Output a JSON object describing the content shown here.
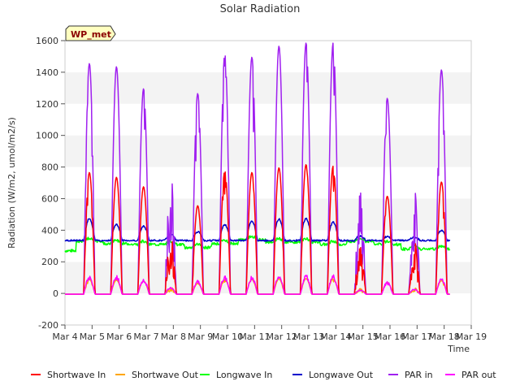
{
  "chart_data": {
    "type": "line",
    "title": "Solar Radiation",
    "xlabel": "Time",
    "ylabel": "Radiation (W/m2, umol/m2/s)",
    "site_badge": "WP_met",
    "ylim": [
      -200,
      1600
    ],
    "xlim": [
      0,
      15
    ],
    "yticks": [
      -200,
      0,
      200,
      400,
      600,
      800,
      1000,
      1200,
      1400,
      1600
    ],
    "xticks": [
      {
        "v": 0,
        "label": "Mar 4"
      },
      {
        "v": 1,
        "label": "Mar 5"
      },
      {
        "v": 2,
        "label": "Mar 6"
      },
      {
        "v": 3,
        "label": "Mar 7"
      },
      {
        "v": 4,
        "label": "Mar 8"
      },
      {
        "v": 5,
        "label": "Mar 9"
      },
      {
        "v": 6,
        "label": "Mar 10"
      },
      {
        "v": 7,
        "label": "Mar 11"
      },
      {
        "v": 8,
        "label": "Mar 12"
      },
      {
        "v": 9,
        "label": "Mar 13"
      },
      {
        "v": 10,
        "label": "Mar 14"
      },
      {
        "v": 11,
        "label": "Mar 15"
      },
      {
        "v": 12,
        "label": "Mar 16"
      },
      {
        "v": 13,
        "label": "Mar 17"
      },
      {
        "v": 14,
        "label": "Mar 18"
      },
      {
        "v": 15,
        "label": "Mar 19"
      }
    ],
    "grid": "horizontal bands",
    "legend_position": "bottom",
    "days": [
      {
        "day": 0,
        "sw_in": 770,
        "par_in": 1460,
        "par_out": 105,
        "lw_in": 360,
        "lw_out": 475
      },
      {
        "day": 1,
        "sw_in": 740,
        "par_in": 1440,
        "par_out": 105,
        "lw_in": 345,
        "lw_out": 435
      },
      {
        "day": 2,
        "sw_in": 680,
        "par_in": 1300,
        "par_out": 90,
        "lw_in": 340,
        "lw_out": 425
      },
      {
        "day": 3,
        "sw_in": 380,
        "par_in": 800,
        "par_out": 40,
        "lw_in": 340,
        "lw_out": 375
      },
      {
        "day": 4,
        "sw_in": 560,
        "par_in": 1270,
        "par_out": 80,
        "lw_in": 320,
        "lw_out": 390
      },
      {
        "day": 5,
        "sw_in": 780,
        "par_in": 1520,
        "par_out": 105,
        "lw_in": 345,
        "lw_out": 435
      },
      {
        "day": 6,
        "sw_in": 770,
        "par_in": 1500,
        "par_out": 100,
        "lw_in": 370,
        "lw_out": 460
      },
      {
        "day": 7,
        "sw_in": 800,
        "par_in": 1570,
        "par_out": 110,
        "lw_in": 355,
        "lw_out": 470
      },
      {
        "day": 8,
        "sw_in": 820,
        "par_in": 1590,
        "par_out": 110,
        "lw_in": 355,
        "lw_out": 475
      },
      {
        "day": 9,
        "sw_in": 810,
        "par_in": 1590,
        "par_out": 110,
        "lw_in": 340,
        "lw_out": 450
      },
      {
        "day": 10,
        "sw_in": 300,
        "par_in": 650,
        "par_out": 25,
        "lw_in": 360,
        "lw_out": 365
      },
      {
        "day": 11,
        "sw_in": 620,
        "par_in": 1240,
        "par_out": 70,
        "lw_in": 340,
        "lw_out": 360
      },
      {
        "day": 12,
        "sw_in": 340,
        "par_in": 680,
        "par_out": 30,
        "lw_in": 310,
        "lw_out": 355
      },
      {
        "day": 13,
        "sw_in": 710,
        "par_in": 1420,
        "par_out": 90,
        "lw_in": 310,
        "lw_out": 400
      }
    ],
    "series": [
      {
        "name": "Shortwave In",
        "color": "#ff0000"
      },
      {
        "name": "Shortwave Out",
        "color": "#ffa500"
      },
      {
        "name": "Longwave In",
        "color": "#00ff00"
      },
      {
        "name": "Longwave Out",
        "color": "#0000cc"
      },
      {
        "name": "PAR in",
        "color": "#a020f0"
      },
      {
        "name": "PAR out",
        "color": "#ff00ff"
      }
    ]
  }
}
